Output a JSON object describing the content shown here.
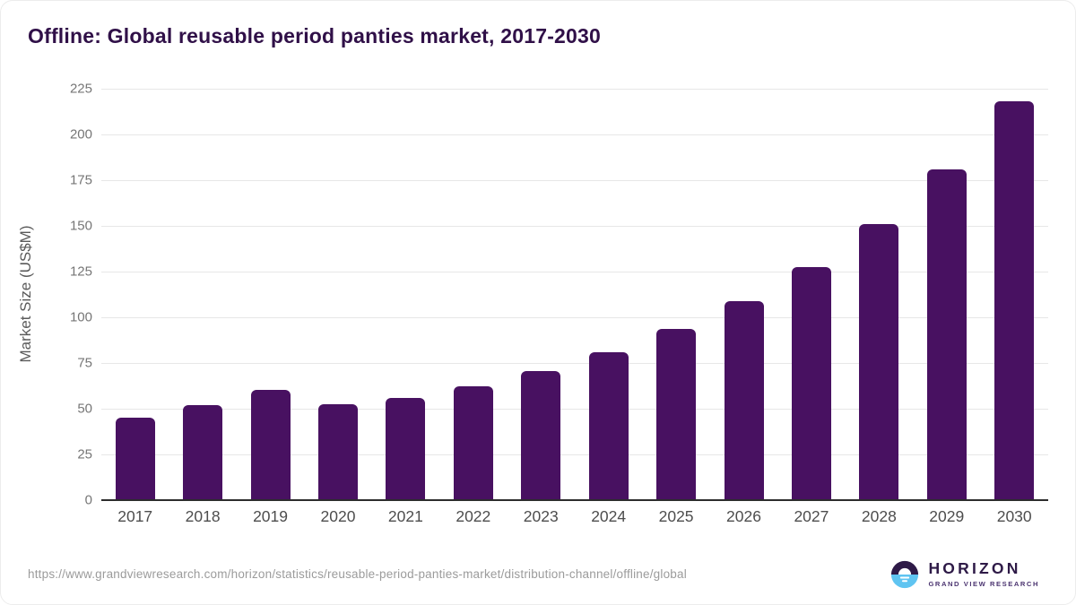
{
  "title": "Offline: Global reusable period panties market, 2017-2030",
  "chart_data": {
    "type": "bar",
    "title": "Offline: Global reusable period panties market, 2017-2030",
    "categories": [
      "2017",
      "2018",
      "2019",
      "2020",
      "2021",
      "2022",
      "2023",
      "2024",
      "2025",
      "2026",
      "2027",
      "2028",
      "2029",
      "2030"
    ],
    "values": [
      45,
      52,
      60.5,
      52.5,
      56,
      62.5,
      70.5,
      81,
      93.5,
      109,
      127.5,
      151,
      181,
      218
    ],
    "xlabel": "",
    "ylabel": "Market Size (US$M)",
    "ylim": [
      0,
      225
    ],
    "ytick_step": 25,
    "grid": "horizontal",
    "legend": "none",
    "bar_color": "#481161"
  },
  "colors": {
    "title_text": "#301048",
    "bar": "#481161",
    "gridline": "#e7e7e7",
    "axis_line": "#2d2d2d",
    "ytick_text": "#767676",
    "xtick_text": "#4d4d4d",
    "url_text": "#9b9b9b",
    "logo_dark_purple": "#2e1a47",
    "logo_light_blue": "#5fc4f1"
  },
  "footer": {
    "source_url": "https://www.grandviewresearch.com/horizon/statistics/reusable-period-panties-market/distribution-channel/offline/global",
    "logo": {
      "brand": "HORIZON",
      "sub_brand": "GRAND VIEW RESEARCH"
    }
  }
}
